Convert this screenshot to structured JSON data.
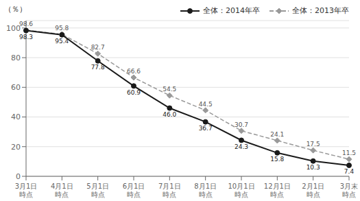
{
  "chart_data": {
    "type": "line",
    "ylabel": "（％）",
    "categories": [
      "3月1日\n時点",
      "4月1日\n時点",
      "5月1日\n時点",
      "6月1日\n時点",
      "7月1日\n時点",
      "8月1日\n時点",
      "10月1日\n時点",
      "12月1日\n時点",
      "2月1日\n時点",
      "3月末\n時点"
    ],
    "series": [
      {
        "name": "全体：2013年卒",
        "color": "#999999",
        "marker": "diamond",
        "line_style": "dashed",
        "values": [
          98.6,
          95.8,
          82.7,
          66.6,
          54.5,
          44.5,
          30.7,
          24.1,
          17.5,
          11.5
        ]
      },
      {
        "name": "全体：2014年卒",
        "color": "#1a1a1a",
        "marker": "circle",
        "line_style": "solid",
        "values": [
          98.3,
          95.4,
          77.8,
          60.9,
          46.0,
          36.7,
          24.3,
          15.8,
          10.3,
          7.4
        ],
        "value_labels": [
          "98.3",
          "95.4",
          "77.8",
          "60.9",
          "46.0",
          "36.7",
          "24.3",
          "15.8",
          "10.3",
          "7.4"
        ]
      }
    ],
    "ylim": [
      0,
      105
    ],
    "yticks": [
      0,
      20,
      40,
      60,
      80,
      100
    ],
    "grid": true,
    "legend": "upper right",
    "data_labels": true
  }
}
